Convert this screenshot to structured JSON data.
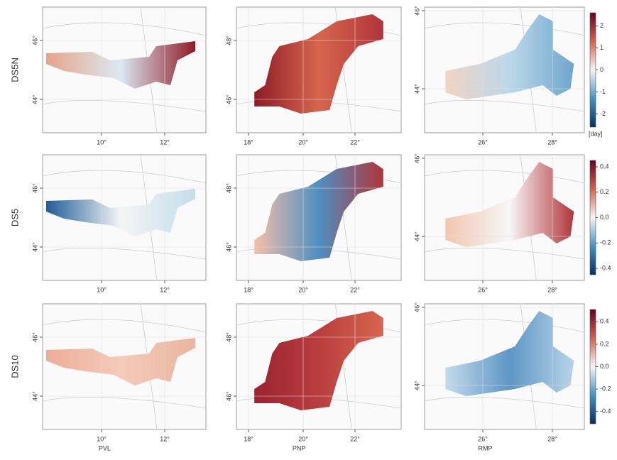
{
  "rows": [
    "DS5N",
    "DS5",
    "DS10"
  ],
  "columns": [
    "PVL",
    "PNP",
    "RMP"
  ],
  "xticks": [
    [
      "10°",
      "12°"
    ],
    [
      "18°",
      "20°",
      "22°"
    ],
    [
      "26°",
      "28°"
    ]
  ],
  "yticks": [
    [
      "46°",
      "44°"
    ],
    [
      "48°",
      "46°"
    ],
    [
      "46°",
      "44°"
    ]
  ],
  "colorbars": [
    {
      "lim": [
        -2.6,
        2.6
      ],
      "ticks": [
        2,
        1,
        0,
        -1,
        -2
      ],
      "unit": "[day]"
    },
    {
      "lim": [
        -0.45,
        0.45
      ],
      "ticks": [
        0.4,
        0.2,
        {
          "value": 0,
          "label": "0.0"
        },
        -0.2,
        -0.4
      ]
    },
    {
      "lim": [
        -0.51,
        0.51
      ],
      "ticks": [
        0.4,
        0.2,
        {
          "value": 0,
          "label": "0.0"
        },
        -0.2,
        -0.4
      ]
    }
  ]
}
